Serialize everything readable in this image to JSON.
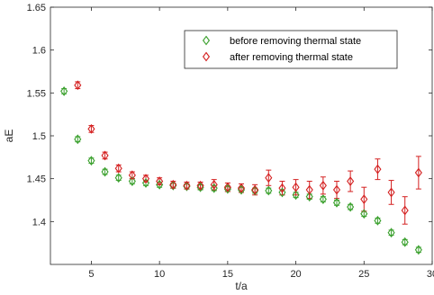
{
  "chart_data": {
    "type": "scatter",
    "title": "",
    "xlabel": "t/a",
    "ylabel": "aE",
    "xlim": [
      2,
      30
    ],
    "ylim": [
      1.35,
      1.65
    ],
    "xticks": [
      5,
      10,
      15,
      20,
      25,
      30
    ],
    "yticks": [
      1.4,
      1.45,
      1.5,
      1.55,
      1.6,
      1.65
    ],
    "ytick_labels": [
      "1.4",
      "1.45",
      "1.5",
      "1.55",
      "1.6",
      "1.65"
    ],
    "grid": false,
    "legend_position": "top-right",
    "marker": "diamond",
    "series": [
      {
        "name": "before removing thermal state",
        "color": "#3aa02d",
        "points": [
          {
            "x": 3,
            "y": 1.552,
            "err": 0.003
          },
          {
            "x": 4,
            "y": 1.496,
            "err": 0.003
          },
          {
            "x": 5,
            "y": 1.471,
            "err": 0.003
          },
          {
            "x": 6,
            "y": 1.458,
            "err": 0.003
          },
          {
            "x": 7,
            "y": 1.451,
            "err": 0.003
          },
          {
            "x": 8,
            "y": 1.447,
            "err": 0.003
          },
          {
            "x": 9,
            "y": 1.445,
            "err": 0.003
          },
          {
            "x": 10,
            "y": 1.443,
            "err": 0.003
          },
          {
            "x": 11,
            "y": 1.442,
            "err": 0.003
          },
          {
            "x": 12,
            "y": 1.441,
            "err": 0.003
          },
          {
            "x": 13,
            "y": 1.44,
            "err": 0.003
          },
          {
            "x": 14,
            "y": 1.439,
            "err": 0.003
          },
          {
            "x": 15,
            "y": 1.438,
            "err": 0.003
          },
          {
            "x": 16,
            "y": 1.437,
            "err": 0.003
          },
          {
            "x": 17,
            "y": 1.436,
            "err": 0.003
          },
          {
            "x": 18,
            "y": 1.436,
            "err": 0.003
          },
          {
            "x": 19,
            "y": 1.434,
            "err": 0.003
          },
          {
            "x": 20,
            "y": 1.431,
            "err": 0.003
          },
          {
            "x": 21,
            "y": 1.429,
            "err": 0.003
          },
          {
            "x": 22,
            "y": 1.426,
            "err": 0.003
          },
          {
            "x": 23,
            "y": 1.422,
            "err": 0.003
          },
          {
            "x": 24,
            "y": 1.417,
            "err": 0.003
          },
          {
            "x": 25,
            "y": 1.409,
            "err": 0.003
          },
          {
            "x": 26,
            "y": 1.401,
            "err": 0.003
          },
          {
            "x": 27,
            "y": 1.387,
            "err": 0.003
          },
          {
            "x": 28,
            "y": 1.376,
            "err": 0.003
          },
          {
            "x": 29,
            "y": 1.367,
            "err": 0.003
          }
        ]
      },
      {
        "name": "after removing thermal state",
        "color": "#d42020",
        "points": [
          {
            "x": 4,
            "y": 1.559,
            "err": 0.004
          },
          {
            "x": 5,
            "y": 1.508,
            "err": 0.004
          },
          {
            "x": 6,
            "y": 1.477,
            "err": 0.004
          },
          {
            "x": 7,
            "y": 1.462,
            "err": 0.004
          },
          {
            "x": 8,
            "y": 1.454,
            "err": 0.004
          },
          {
            "x": 9,
            "y": 1.45,
            "err": 0.004
          },
          {
            "x": 10,
            "y": 1.447,
            "err": 0.004
          },
          {
            "x": 11,
            "y": 1.443,
            "err": 0.004
          },
          {
            "x": 12,
            "y": 1.442,
            "err": 0.004
          },
          {
            "x": 13,
            "y": 1.442,
            "err": 0.004
          },
          {
            "x": 14,
            "y": 1.443,
            "err": 0.006
          },
          {
            "x": 15,
            "y": 1.44,
            "err": 0.005
          },
          {
            "x": 16,
            "y": 1.439,
            "err": 0.005
          },
          {
            "x": 17,
            "y": 1.437,
            "err": 0.006
          },
          {
            "x": 18,
            "y": 1.451,
            "err": 0.009
          },
          {
            "x": 19,
            "y": 1.439,
            "err": 0.008
          },
          {
            "x": 20,
            "y": 1.44,
            "err": 0.009
          },
          {
            "x": 21,
            "y": 1.437,
            "err": 0.01
          },
          {
            "x": 22,
            "y": 1.442,
            "err": 0.01
          },
          {
            "x": 23,
            "y": 1.437,
            "err": 0.01
          },
          {
            "x": 24,
            "y": 1.447,
            "err": 0.012
          },
          {
            "x": 25,
            "y": 1.426,
            "err": 0.014
          },
          {
            "x": 26,
            "y": 1.461,
            "err": 0.012
          },
          {
            "x": 27,
            "y": 1.434,
            "err": 0.014
          },
          {
            "x": 28,
            "y": 1.413,
            "err": 0.016
          },
          {
            "x": 29,
            "y": 1.457,
            "err": 0.019
          }
        ]
      }
    ]
  }
}
